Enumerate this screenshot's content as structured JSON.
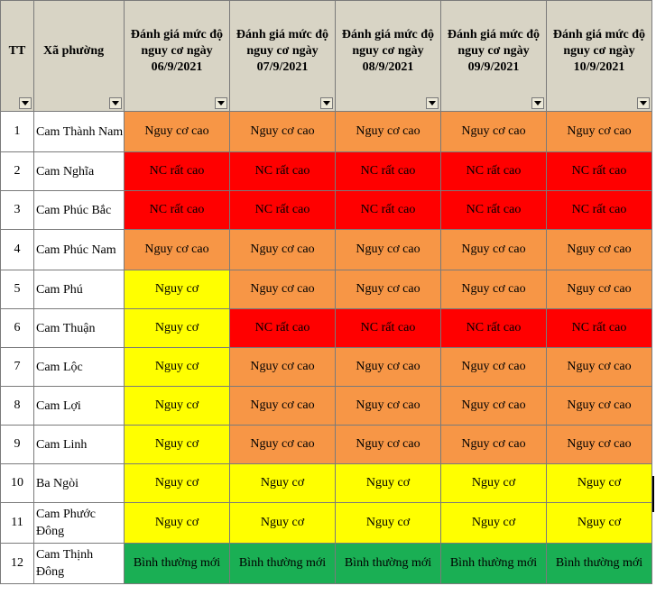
{
  "colors": {
    "header_bg": "#d8d4c5",
    "very_high_risk": "#ff0000",
    "high_risk": "#f79646",
    "risk": "#ffff00",
    "new_normal": "#1aaf54",
    "grid": "#7a7a7a"
  },
  "header": {
    "tt": "TT",
    "ward": "Xã phường",
    "days": [
      "Đánh giá mức độ nguy cơ ngày 06/9/2021",
      "Đánh giá mức độ nguy cơ ngày 07/9/2021",
      "Đánh giá mức độ nguy cơ ngày 08/9/2021",
      "Đánh giá mức độ nguy cơ ngày 09/9/2021",
      "Đánh giá mức độ nguy cơ ngày 10/9/2021"
    ],
    "filter_icon": "dropdown-arrow-icon"
  },
  "rows": [
    {
      "tt": "1",
      "ward": "Cam Thành Nam",
      "status": [
        "Nguy cơ cao",
        "Nguy cơ cao",
        "Nguy cơ cao",
        "Nguy cơ cao",
        "Nguy cơ cao"
      ],
      "level": [
        "orange",
        "orange",
        "orange",
        "orange",
        "orange"
      ]
    },
    {
      "tt": "2",
      "ward": "Cam Nghĩa",
      "status": [
        "NC rất cao",
        "NC rất cao",
        "NC rất cao",
        "NC rất cao",
        "NC rất cao"
      ],
      "level": [
        "red",
        "red",
        "red",
        "red",
        "red"
      ]
    },
    {
      "tt": "3",
      "ward": "Cam Phúc Bắc",
      "status": [
        "NC rất cao",
        "NC rất cao",
        "NC rất cao",
        "NC rất cao",
        "NC rất cao"
      ],
      "level": [
        "red",
        "red",
        "red",
        "red",
        "red"
      ]
    },
    {
      "tt": "4",
      "ward": "Cam Phúc Nam",
      "status": [
        "Nguy cơ cao",
        "Nguy cơ cao",
        "Nguy cơ cao",
        "Nguy cơ cao",
        "Nguy cơ cao"
      ],
      "level": [
        "orange",
        "orange",
        "orange",
        "orange",
        "orange"
      ]
    },
    {
      "tt": "5",
      "ward": "Cam Phú",
      "status": [
        "Nguy cơ",
        "Nguy cơ cao",
        "Nguy cơ cao",
        "Nguy cơ cao",
        "Nguy cơ cao"
      ],
      "level": [
        "yellow",
        "orange",
        "orange",
        "orange",
        "orange"
      ]
    },
    {
      "tt": "6",
      "ward": "Cam Thuận",
      "status": [
        "Nguy cơ",
        "NC rất cao",
        "NC rất cao",
        "NC rất cao",
        "NC rất cao"
      ],
      "level": [
        "yellow",
        "red",
        "red",
        "red",
        "red"
      ]
    },
    {
      "tt": "7",
      "ward": "Cam Lộc",
      "status": [
        "Nguy cơ",
        "Nguy cơ cao",
        "Nguy cơ cao",
        "Nguy cơ cao",
        "Nguy cơ cao"
      ],
      "level": [
        "yellow",
        "orange",
        "orange",
        "orange",
        "orange"
      ]
    },
    {
      "tt": "8",
      "ward": "Cam Lợi",
      "status": [
        "Nguy cơ",
        "Nguy cơ cao",
        "Nguy cơ cao",
        "Nguy cơ cao",
        "Nguy cơ cao"
      ],
      "level": [
        "yellow",
        "orange",
        "orange",
        "orange",
        "orange"
      ]
    },
    {
      "tt": "9",
      "ward": "Cam Linh",
      "status": [
        "Nguy cơ",
        "Nguy cơ cao",
        "Nguy cơ cao",
        "Nguy cơ cao",
        "Nguy cơ cao"
      ],
      "level": [
        "yellow",
        "orange",
        "orange",
        "orange",
        "orange"
      ]
    },
    {
      "tt": "10",
      "ward": "Ba Ngòi",
      "status": [
        "Nguy cơ",
        "Nguy cơ",
        "Nguy cơ",
        "Nguy cơ",
        "Nguy cơ"
      ],
      "level": [
        "yellow",
        "yellow",
        "yellow",
        "yellow",
        "yellow"
      ]
    },
    {
      "tt": "11",
      "ward": "Cam Phước Đông",
      "status": [
        "Nguy cơ",
        "Nguy cơ",
        "Nguy cơ",
        "Nguy cơ",
        "Nguy cơ"
      ],
      "level": [
        "yellow",
        "yellow",
        "yellow",
        "yellow",
        "yellow"
      ]
    },
    {
      "tt": "12",
      "ward": "Cam Thịnh Đông",
      "status": [
        "Bình thường mới",
        "Bình thường mới",
        "Bình thường mới",
        "Bình thường mới",
        "Bình thường mới"
      ],
      "level": [
        "green",
        "green",
        "green",
        "green",
        "green"
      ]
    }
  ]
}
